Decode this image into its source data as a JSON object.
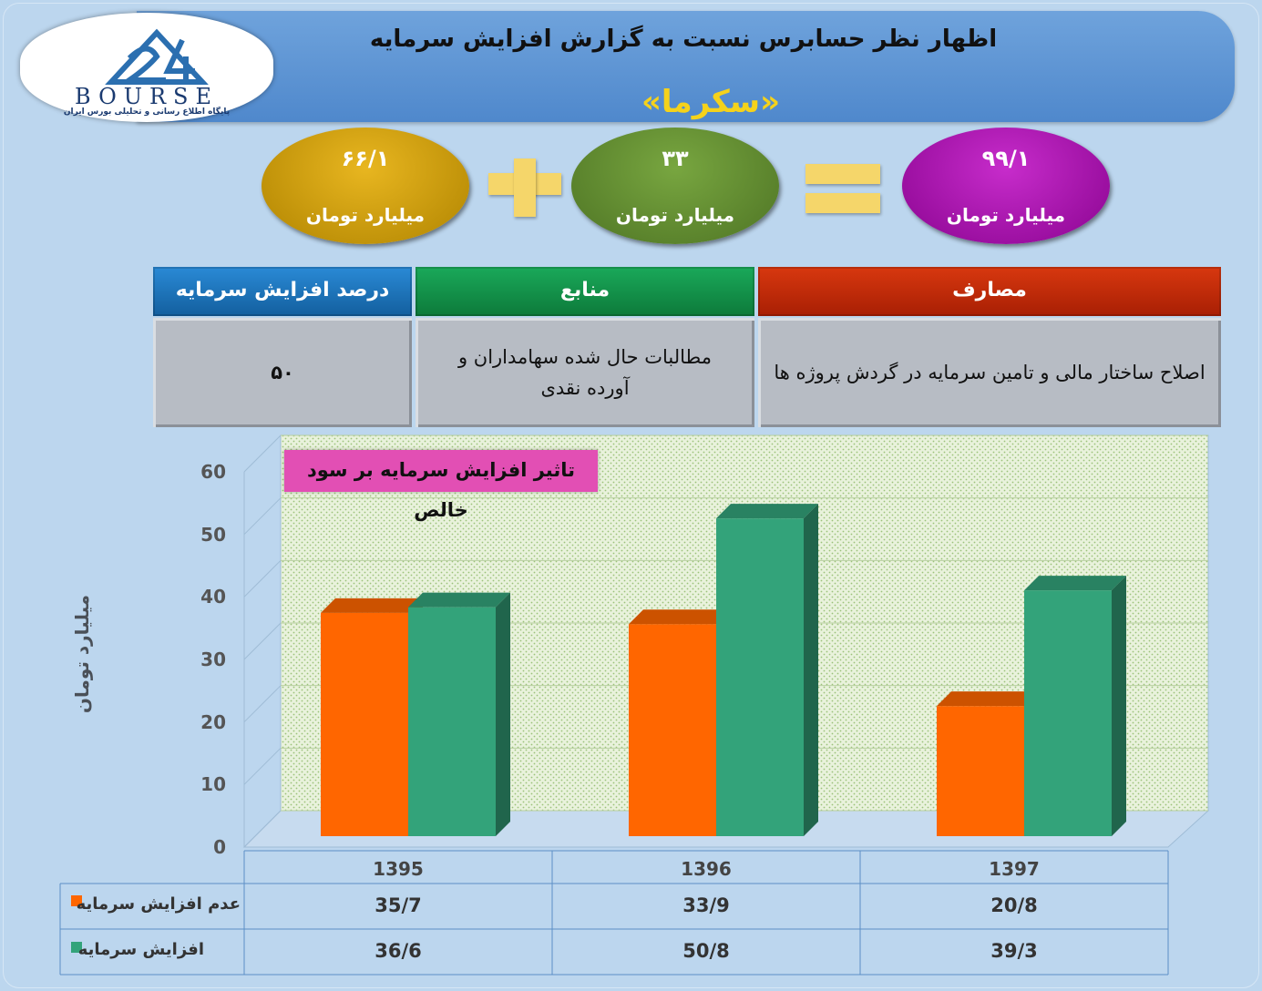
{
  "header": {
    "title": "اظهار نظر حسابرس نسبت به گزارش افزایش سرمایه",
    "company": "«سکرما»"
  },
  "logo": {
    "word": "BOURSE",
    "subtitle": "پایگاه اطلاع رسانی و تحلیلی بورس ایران"
  },
  "equation": {
    "total": {
      "value": "۹۹/۱",
      "unit": "میلیارد تومان",
      "color": "#a60fa8"
    },
    "part_a": {
      "value": "۳۳",
      "unit": "میلیارد تومان",
      "color": "#5f8a2e"
    },
    "part_b": {
      "value": "۶۶/۱",
      "unit": "میلیارد تومان",
      "color": "#c89a06"
    }
  },
  "table": {
    "headers": {
      "uses": "مصارف",
      "sources": "منابع",
      "percent": "درصد افزایش سرمایه"
    },
    "values": {
      "uses": "اصلاح ساختار مالی و تامین سرمایه در گردش پروژه ها",
      "sources": "مطالبات حال شده سهامداران و آورده نقدی",
      "percent": "۵۰"
    },
    "colors": {
      "uses": "#c42a0a",
      "sources": "#14924a",
      "percent": "#1f78c2"
    }
  },
  "chart_data": {
    "type": "bar",
    "title": "تاثیر افزایش سرمایه بر سود خالص",
    "ylabel": "میلیارد تومان",
    "ylim": [
      0,
      60
    ],
    "yticks": [
      "0",
      "10",
      "20",
      "30",
      "40",
      "50",
      "60"
    ],
    "categories": [
      "1395",
      "1396",
      "1397"
    ],
    "series": [
      {
        "name": "عدم افزایش سرمایه",
        "values": [
          35.7,
          33.9,
          20.8
        ],
        "labels": [
          "35/7",
          "33/9",
          "20/8"
        ],
        "color": "#ff6600"
      },
      {
        "name": "افزایش سرمایه",
        "values": [
          36.6,
          50.8,
          39.3
        ],
        "labels": [
          "36/6",
          "50/8",
          "39/3"
        ],
        "color": "#33a37a"
      }
    ]
  }
}
